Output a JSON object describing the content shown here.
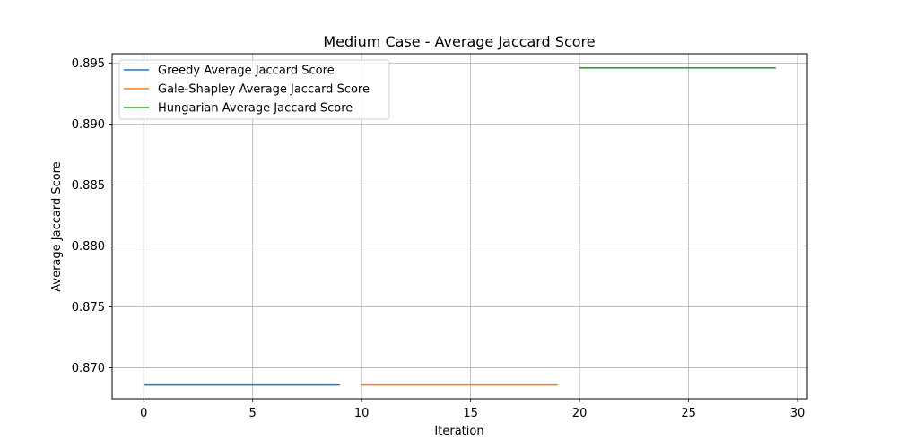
{
  "chart_data": {
    "type": "line",
    "title": "Medium Case - Average Jaccard Score",
    "xlabel": "Iteration",
    "ylabel": "Average Jaccard Score",
    "xlim": [
      -1.45,
      30.45
    ],
    "ylim": [
      0.86747,
      0.89576
    ],
    "x_ticks": [
      0,
      5,
      10,
      15,
      20,
      25,
      30
    ],
    "x_tick_labels": [
      "0",
      "5",
      "10",
      "15",
      "20",
      "25",
      "30"
    ],
    "y_ticks": [
      0.87,
      0.875,
      0.88,
      0.885,
      0.89,
      0.895
    ],
    "y_tick_labels": [
      "0.870",
      "0.875",
      "0.880",
      "0.885",
      "0.890",
      "0.895"
    ],
    "grid": true,
    "legend_position": "top-left",
    "series": [
      {
        "name": "Greedy Average Jaccard Score",
        "color": "#1f77b4",
        "x": [
          0,
          1,
          2,
          3,
          4,
          5,
          6,
          7,
          8,
          9
        ],
        "y": [
          0.8686,
          0.8686,
          0.8686,
          0.8686,
          0.8686,
          0.8686,
          0.8686,
          0.8686,
          0.8686,
          0.8686
        ]
      },
      {
        "name": "Gale-Shapley Average Jaccard Score",
        "color": "#ff7f0e",
        "x": [
          10,
          11,
          12,
          13,
          14,
          15,
          16,
          17,
          18,
          19
        ],
        "y": [
          0.8686,
          0.8686,
          0.8686,
          0.8686,
          0.8686,
          0.8686,
          0.8686,
          0.8686,
          0.8686,
          0.8686
        ]
      },
      {
        "name": "Hungarian Average Jaccard Score",
        "color": "#2ca02c",
        "x": [
          20,
          21,
          22,
          23,
          24,
          25,
          26,
          27,
          28,
          29
        ],
        "y": [
          0.8946,
          0.8946,
          0.8946,
          0.8946,
          0.8946,
          0.8946,
          0.8946,
          0.8946,
          0.8946,
          0.8946
        ]
      }
    ]
  }
}
